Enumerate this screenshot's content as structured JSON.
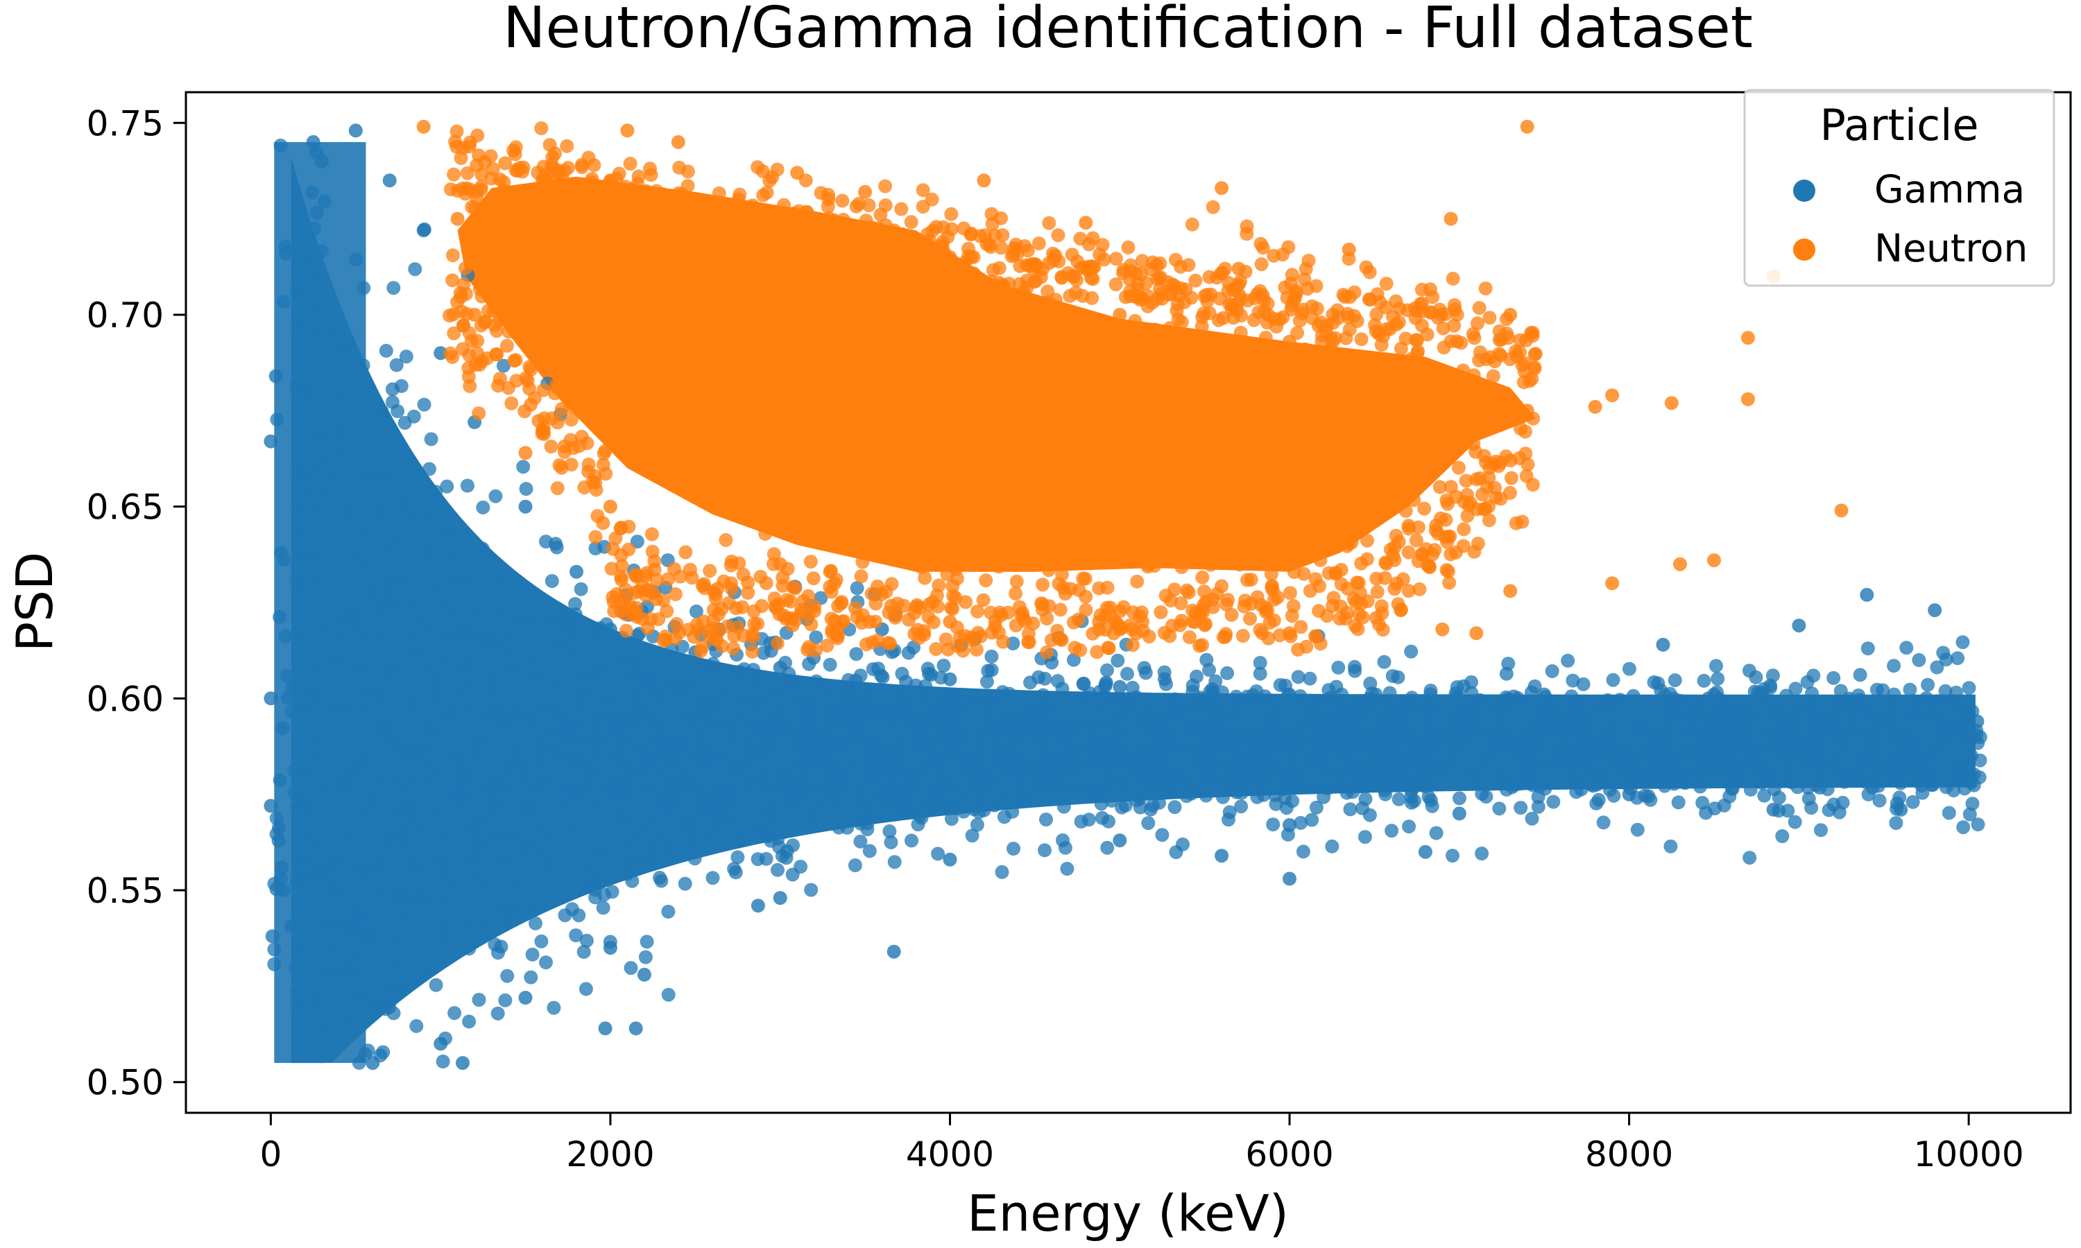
{
  "chart_data": {
    "type": "scatter",
    "title": "Neutron/Gamma identification - Full dataset",
    "xlabel": "Energy (keV)",
    "ylabel": "PSD",
    "xlim": [
      -500,
      10600
    ],
    "ylim": [
      0.492,
      0.758
    ],
    "xticks": [
      0,
      2000,
      4000,
      6000,
      8000,
      10000
    ],
    "yticks": [
      0.5,
      0.55,
      0.6,
      0.65,
      0.7,
      0.75
    ],
    "xtick_labels": [
      "0",
      "2000",
      "4000",
      "6000",
      "8000",
      "10000"
    ],
    "ytick_labels": [
      "0.50",
      "0.55",
      "0.60",
      "0.65",
      "0.70",
      "0.75"
    ],
    "grid": false,
    "legend": {
      "title": "Particle",
      "placement": "top-right"
    },
    "series": [
      {
        "name": "Gamma",
        "color": "#1f77b4",
        "points": [
          [
            0,
            0.667
          ],
          [
            0,
            0.6
          ],
          [
            0,
            0.572
          ],
          [
            10,
            0.538
          ],
          [
            30,
            0.684
          ],
          [
            250,
            0.745
          ],
          [
            300,
            0.74
          ],
          [
            500,
            0.748
          ],
          [
            700,
            0.735
          ],
          [
            900,
            0.722
          ],
          [
            1000,
            0.69
          ],
          [
            1200,
            0.672
          ],
          [
            1500,
            0.65
          ],
          [
            1800,
            0.633
          ],
          [
            2000,
            0.618
          ],
          [
            2500,
            0.612
          ],
          [
            3000,
            0.608
          ],
          [
            3600,
            0.618
          ],
          [
            4000,
            0.605
          ],
          [
            5000,
            0.603
          ],
          [
            6000,
            0.601
          ],
          [
            7000,
            0.6
          ],
          [
            8000,
            0.598
          ],
          [
            8200,
            0.614
          ],
          [
            8500,
            0.601
          ],
          [
            9000,
            0.619
          ],
          [
            9400,
            0.627
          ],
          [
            9800,
            0.623
          ],
          [
            10050,
            0.594
          ],
          [
            9000,
            0.579
          ],
          [
            8000,
            0.575
          ],
          [
            7000,
            0.57
          ],
          [
            6000,
            0.567
          ],
          [
            5000,
            0.563
          ],
          [
            4000,
            0.558
          ],
          [
            3000,
            0.548
          ],
          [
            2000,
            0.535
          ],
          [
            1500,
            0.522
          ],
          [
            1000,
            0.51
          ],
          [
            600,
            0.505
          ],
          [
            1130,
            0.505
          ],
          [
            1970,
            0.514
          ],
          [
            2150,
            0.514
          ],
          [
            3670,
            0.534
          ],
          [
            5600,
            0.559
          ],
          [
            6000,
            0.553
          ],
          [
            6800,
            0.56
          ],
          [
            9600,
            0.571
          ],
          [
            8850,
            0.571
          ],
          [
            2200,
            0.528
          ],
          [
            2870,
            0.546
          ]
        ]
      },
      {
        "name": "Neutron",
        "color": "#ff7f0e",
        "points": [
          [
            900,
            0.749
          ],
          [
            2100,
            0.748
          ],
          [
            2400,
            0.745
          ],
          [
            3100,
            0.737
          ],
          [
            3500,
            0.732
          ],
          [
            4200,
            0.735
          ],
          [
            5600,
            0.733
          ],
          [
            6950,
            0.725
          ],
          [
            7400,
            0.749
          ],
          [
            4800,
            0.724
          ],
          [
            6350,
            0.717
          ],
          [
            5700,
            0.712
          ],
          [
            7300,
            0.7
          ],
          [
            8700,
            0.694
          ],
          [
            8850,
            0.71
          ],
          [
            7800,
            0.676
          ],
          [
            7900,
            0.679
          ],
          [
            8250,
            0.677
          ],
          [
            8700,
            0.678
          ],
          [
            9250,
            0.649
          ],
          [
            8300,
            0.635
          ],
          [
            8500,
            0.636
          ],
          [
            7900,
            0.63
          ],
          [
            7300,
            0.628
          ],
          [
            7100,
            0.617
          ],
          [
            6900,
            0.618
          ],
          [
            6000,
            0.617
          ],
          [
            5000,
            0.618
          ],
          [
            4000,
            0.62
          ],
          [
            3000,
            0.635
          ],
          [
            2000,
            0.65
          ],
          [
            1500,
            0.664
          ],
          [
            1200,
            0.7
          ],
          [
            1100,
            0.725
          ],
          [
            1600,
            0.735
          ],
          [
            2000,
            0.735
          ],
          [
            3000,
            0.725
          ],
          [
            4000,
            0.715
          ],
          [
            5000,
            0.7
          ],
          [
            6000,
            0.693
          ],
          [
            7000,
            0.683
          ],
          [
            7400,
            0.675
          ]
        ]
      }
    ]
  }
}
